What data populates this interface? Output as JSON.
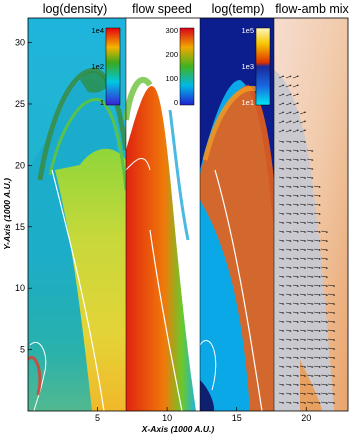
{
  "chart_data": {
    "type": "heatmap",
    "panels": [
      {
        "title": "log(density)",
        "colorbar": {
          "ticks": [
            "1e4",
            "1e2",
            "1"
          ]
        }
      },
      {
        "title": "flow speed",
        "colorbar": {
          "ticks": [
            "300",
            "200",
            "100",
            "0"
          ]
        }
      },
      {
        "title": "log(temp)",
        "colorbar": {
          "ticks": [
            "1e5",
            "1e3",
            "1e1"
          ]
        }
      },
      {
        "title": "flow-amb mix",
        "colorbar": null
      }
    ],
    "xlabel": "X-Axis (1000 A.U.)",
    "ylabel": "Y-Axis (1000 A.U.)",
    "xticks": [
      "5",
      "10",
      "15",
      "20"
    ],
    "yticks": [
      "30",
      "25",
      "20",
      "15",
      "10",
      "5"
    ],
    "xlim": [
      0,
      23
    ],
    "ylim": [
      0,
      32
    ]
  }
}
